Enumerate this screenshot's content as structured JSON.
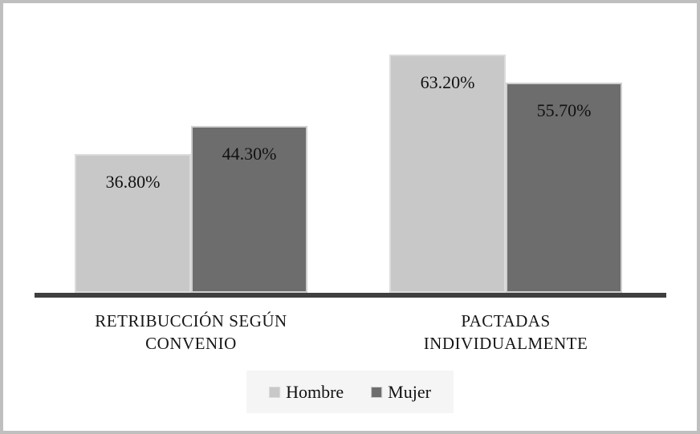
{
  "figure": {
    "description": "Grouped bar chart comparing pay-setting type by gender"
  },
  "chart_data": {
    "type": "bar",
    "title": "",
    "xlabel": "",
    "ylabel": "",
    "ylim": [
      0,
      70
    ],
    "grid": false,
    "legend_position": "bottom",
    "categories": [
      "RETRIBUCCIÓN SEGÚN CONVENIO",
      "PACTADAS INDIVIDUALMENTE"
    ],
    "category_lines": [
      [
        "RETRIBUCCIÓN SEGÚN",
        "CONVENIO"
      ],
      [
        "PACTADAS",
        "INDIVIDUALMENTE"
      ]
    ],
    "series": [
      {
        "name": "Hombre",
        "values": [
          36.8,
          63.2
        ],
        "labels": [
          "36.80%",
          "63.20%"
        ],
        "color": "#c8c8c8",
        "border_color": "#dcdcdc"
      },
      {
        "name": "Mujer",
        "values": [
          44.3,
          55.7
        ],
        "labels": [
          "44.30%",
          "55.70%"
        ],
        "color": "#6d6d6d",
        "border_color": "#cfcfcf"
      }
    ]
  },
  "colors": {
    "axis_line": "#3f3f3f",
    "frame_border": "#bfbfbf",
    "legend_background": "#f5f5f5",
    "text": "#111111",
    "background": "#ffffff"
  }
}
